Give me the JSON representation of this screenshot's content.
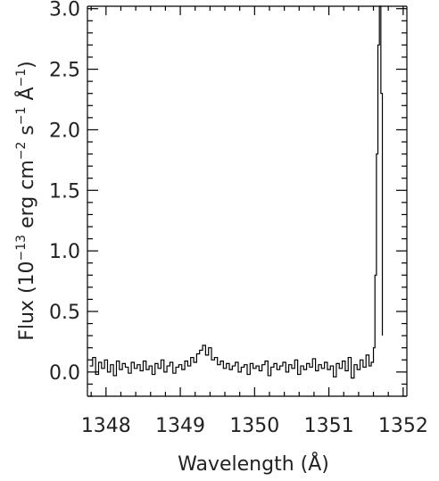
{
  "chart_data": {
    "type": "line",
    "title": "",
    "xlabel": "Wavelength (Å)",
    "ylabel_parts": {
      "a": "Flux (10",
      "b": "−13",
      "c": " erg cm",
      "d": "−2",
      "e": " s",
      "f": "−1",
      "g": " Å",
      "h": "−1",
      "i": ")"
    },
    "xlim": [
      1347.75,
      1352.05
    ],
    "ylim": [
      -0.2,
      3.02
    ],
    "x_ticks": [
      {
        "value": 1348,
        "label": "1348"
      },
      {
        "value": 1349,
        "label": "1349"
      },
      {
        "value": 1350,
        "label": "1350"
      },
      {
        "value": 1351,
        "label": "1351"
      },
      {
        "value": 1352,
        "label": "1352"
      }
    ],
    "y_ticks": [
      {
        "value": 0.0,
        "label": "0.0"
      },
      {
        "value": 0.5,
        "label": "0.5"
      },
      {
        "value": 1.0,
        "label": "1.0"
      },
      {
        "value": 1.5,
        "label": "1.5"
      },
      {
        "value": 2.0,
        "label": "2.0"
      },
      {
        "value": 2.5,
        "label": "2.5"
      },
      {
        "value": 3.0,
        "label": "3.0"
      }
    ],
    "series": [
      {
        "style": "steps",
        "x": [
          1347.78,
          1347.82,
          1347.86,
          1347.9,
          1347.94,
          1347.98,
          1348.02,
          1348.06,
          1348.1,
          1348.14,
          1348.18,
          1348.22,
          1348.26,
          1348.3,
          1348.34,
          1348.38,
          1348.42,
          1348.46,
          1348.5,
          1348.54,
          1348.58,
          1348.62,
          1348.66,
          1348.7,
          1348.74,
          1348.78,
          1348.82,
          1348.86,
          1348.9,
          1348.94,
          1348.98,
          1349.02,
          1349.06,
          1349.1,
          1349.14,
          1349.18,
          1349.22,
          1349.26,
          1349.3,
          1349.34,
          1349.38,
          1349.42,
          1349.46,
          1349.5,
          1349.54,
          1349.58,
          1349.62,
          1349.66,
          1349.7,
          1349.74,
          1349.78,
          1349.82,
          1349.86,
          1349.9,
          1349.94,
          1349.98,
          1350.02,
          1350.06,
          1350.1,
          1350.14,
          1350.18,
          1350.22,
          1350.26,
          1350.3,
          1350.34,
          1350.38,
          1350.42,
          1350.46,
          1350.5,
          1350.54,
          1350.58,
          1350.62,
          1350.66,
          1350.7,
          1350.74,
          1350.78,
          1350.82,
          1350.86,
          1350.9,
          1350.94,
          1350.98,
          1351.02,
          1351.06,
          1351.1,
          1351.14,
          1351.18,
          1351.22,
          1351.26,
          1351.3,
          1351.34,
          1351.38,
          1351.42,
          1351.46,
          1351.5,
          1351.54,
          1351.57,
          1351.6,
          1351.62,
          1351.64,
          1351.66,
          1351.68,
          1351.7,
          1351.72
        ],
        "y": [
          0.05,
          0.12,
          -0.02,
          0.08,
          0.03,
          0.1,
          0.0,
          0.06,
          -0.03,
          0.09,
          0.02,
          0.07,
          0.04,
          -0.01,
          0.08,
          0.03,
          0.06,
          0.01,
          0.09,
          0.02,
          0.05,
          -0.02,
          0.07,
          0.03,
          0.1,
          0.0,
          0.05,
          0.08,
          -0.01,
          0.04,
          0.06,
          0.02,
          0.09,
          0.05,
          0.12,
          0.08,
          0.15,
          0.18,
          0.22,
          0.14,
          0.2,
          0.1,
          0.12,
          0.06,
          0.09,
          0.03,
          0.07,
          0.02,
          0.05,
          0.08,
          0.0,
          0.04,
          0.06,
          -0.02,
          0.07,
          0.03,
          0.05,
          0.01,
          0.06,
          0.09,
          -0.03,
          0.04,
          0.07,
          0.02,
          0.05,
          0.08,
          0.0,
          0.06,
          0.03,
          0.1,
          -0.02,
          0.05,
          0.02,
          0.07,
          0.04,
          0.11,
          0.01,
          0.06,
          0.03,
          0.08,
          0.02,
          0.05,
          -0.04,
          0.07,
          0.03,
          0.09,
          0.01,
          0.12,
          -0.05,
          0.06,
          0.02,
          0.1,
          0.04,
          0.14,
          0.05,
          0.08,
          0.2,
          0.8,
          1.8,
          2.7,
          3.02,
          2.3,
          0.3
        ]
      }
    ]
  }
}
